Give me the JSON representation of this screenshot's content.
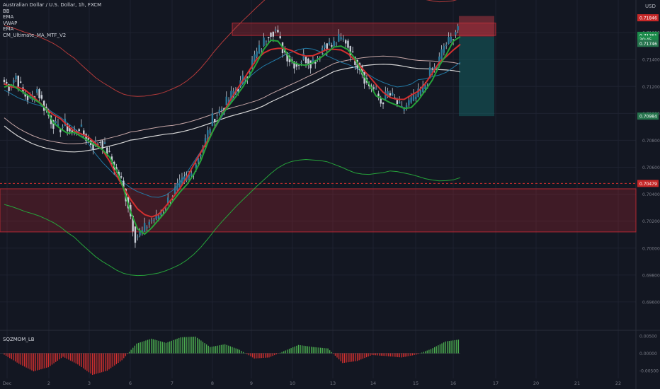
{
  "colors": {
    "background": "#131722",
    "candle_body": "#2b7a9b",
    "candle_wick": "#c9cfd8",
    "red_line": "#d32f2f",
    "green_line": "#26a33a",
    "blue_line": "#2178a3",
    "white_line": "#d6d6d6",
    "bb_line": "#b33a3a",
    "osc_green": "#4caf50",
    "osc_red": "#d32f2f"
  },
  "header": {
    "symbol_line": "Australian Dollar / U.S. Dollar, 1h, FXCM",
    "indicators": [
      "BB",
      "EMA",
      "VWAP",
      "EMA",
      "CM_Ultimate_MA_MTF_V2"
    ]
  },
  "oscillator": {
    "label": "SQZMOM_LB"
  },
  "currency": "USD",
  "chart_data": [
    {
      "type": "line",
      "title": "",
      "x_ticks": [
        "Dec",
        "2",
        "3",
        "6",
        "7",
        "8",
        "9",
        "10",
        "13",
        "14",
        "15",
        "16",
        "17",
        "20",
        "21",
        "22"
      ],
      "y_ticks": [
        "0.71600",
        "0.71400",
        "0.71200",
        "0.71000",
        "0.70800",
        "0.70600",
        "0.70400",
        "0.70200",
        "0.70000",
        "0.69800",
        "0.69600"
      ],
      "ylim": [
        0.694,
        0.718
      ],
      "price_series": [
        0.7125,
        0.712,
        0.7128,
        0.7115,
        0.711,
        0.7118,
        0.7105,
        0.7095,
        0.7088,
        0.7092,
        0.7085,
        0.709,
        0.7082,
        0.7076,
        0.708,
        0.7072,
        0.706,
        0.705,
        0.7032,
        0.7008,
        0.7012,
        0.702,
        0.7022,
        0.703,
        0.7038,
        0.7045,
        0.705,
        0.7055,
        0.7068,
        0.708,
        0.7096,
        0.7102,
        0.7108,
        0.7116,
        0.7122,
        0.713,
        0.7142,
        0.715,
        0.716,
        0.7162,
        0.7148,
        0.714,
        0.7136,
        0.7142,
        0.7138,
        0.7142,
        0.7152,
        0.715,
        0.7155,
        0.7154,
        0.7142,
        0.7135,
        0.7122,
        0.7118,
        0.7108,
        0.7115,
        0.711,
        0.7102,
        0.7108,
        0.7112,
        0.7118,
        0.713,
        0.7135,
        0.715,
        0.7155,
        0.7165
      ],
      "price_labels": [
        {
          "text": "0.71846",
          "bg": "#c62828"
        },
        {
          "text": "0.71761",
          "bg": "#1b8a4a"
        },
        {
          "text": "30:45",
          "bg": "#1b8a4a"
        },
        {
          "text": "0.71746",
          "bg": "#26734d"
        },
        {
          "text": "0.70984",
          "bg": "#26734d"
        },
        {
          "text": "0.70479",
          "bg": "#c62828"
        }
      ],
      "resistance_zone": [
        0.716,
        0.7165
      ],
      "support_zone": [
        0.7012,
        0.7044
      ],
      "dashed_level": 0.7048,
      "position": {
        "entry": 0.7157,
        "stop": 0.7166,
        "target": 0.7098
      }
    },
    {
      "type": "bar",
      "title": "SQZMOM_LB",
      "y_ticks": [
        "0.00500",
        "0.00000",
        "-0.00500"
      ],
      "ylim": [
        -0.0062,
        0.006
      ],
      "values": [
        -0.0004,
        -0.003,
        -0.0052,
        -0.004,
        -0.001,
        -0.0032,
        -0.0062,
        -0.005,
        -0.002,
        0.0028,
        0.0042,
        0.003,
        0.0046,
        0.0048,
        0.0018,
        0.0026,
        0.001,
        -0.0015,
        -0.0012,
        0.0006,
        0.0024,
        0.0018,
        0.0014,
        -0.0028,
        -0.0022,
        -0.0005,
        -0.0008,
        -0.0012,
        -0.0004,
        0.0012,
        0.0034,
        0.004
      ]
    }
  ]
}
